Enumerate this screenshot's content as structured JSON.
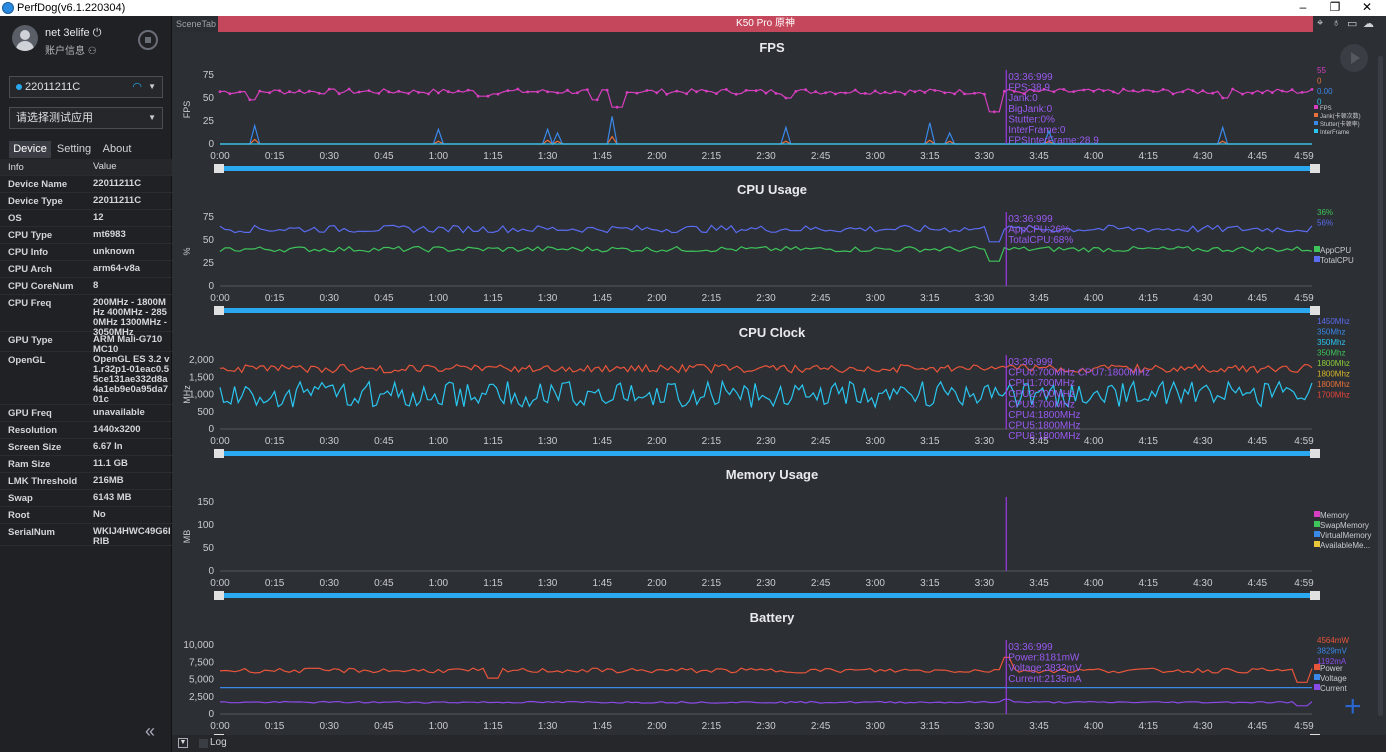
{
  "window": {
    "title": "PerfDog(v6.1.220304)",
    "min_icon": "minimize-icon",
    "restore_icon": "restore-icon",
    "close_icon": "close-icon"
  },
  "user": {
    "name": "net 3elife",
    "info": "账户信息"
  },
  "device_select": {
    "value": "22011211C"
  },
  "app_select": {
    "value": "请选择测试应用"
  },
  "tabs": {
    "device": "Device",
    "setting": "Setting",
    "about": "About"
  },
  "info_header": {
    "key": "Info",
    "value": "Value"
  },
  "info": [
    {
      "k": "Device Name",
      "v": "22011211C"
    },
    {
      "k": "Device Type",
      "v": "22011211C"
    },
    {
      "k": "OS",
      "v": "12"
    },
    {
      "k": "CPU Type",
      "v": "mt6983"
    },
    {
      "k": "CPU Info",
      "v": "unknown"
    },
    {
      "k": "CPU Arch",
      "v": "arm64-v8a"
    },
    {
      "k": "CPU CoreNum",
      "v": "8"
    },
    {
      "k": "CPU Freq",
      "v": "200MHz - 1800MHz 400MHz - 2850MHz 1300MHz - 3050MHz"
    },
    {
      "k": "GPU Type",
      "v": "ARM Mali-G710 MC10"
    },
    {
      "k": "OpenGL",
      "v": "OpenGL ES 3.2 v1.r32p1-01eac0.55ce131ae332d8a4a1eb9e0a95da701c"
    },
    {
      "k": "GPU Freq",
      "v": "unavailable"
    },
    {
      "k": "Resolution",
      "v": "1440x3200"
    },
    {
      "k": "Screen Size",
      "v": "6.67 In"
    },
    {
      "k": "Ram Size",
      "v": "11.1 GB"
    },
    {
      "k": "LMK Threshold",
      "v": "216MB"
    },
    {
      "k": "Swap",
      "v": "6143 MB"
    },
    {
      "k": "Root",
      "v": "No"
    },
    {
      "k": "SerialNum",
      "v": "WKIJ4HWC49G6IRIB"
    }
  ],
  "scene_tab": "SceneTab",
  "session_title": "K50 Pro 原神",
  "bottom": {
    "log": "Log"
  },
  "x_ticks": [
    "0:00",
    "0:15",
    "0:30",
    "0:45",
    "1:00",
    "1:15",
    "1:30",
    "1:45",
    "2:00",
    "2:15",
    "2:30",
    "2:45",
    "3:00",
    "3:15",
    "3:30",
    "3:45",
    "4:00",
    "4:15",
    "4:30",
    "4:45",
    "4:59"
  ],
  "cursor_x": 3.6,
  "chart_data": [
    {
      "type": "line",
      "title": "FPS",
      "ylabel": "FPS",
      "y_ticks": [
        0,
        25,
        50,
        75
      ],
      "ylim": [
        0,
        75
      ],
      "x_range_min": [
        0,
        5
      ],
      "series": [
        {
          "name": "FPS",
          "color": "#d63fbf",
          "base": 57,
          "noise": 3,
          "dips": [
            [
              0.15,
              48
            ],
            [
              1.2,
              52
            ],
            [
              1.72,
              48
            ],
            [
              1.82,
              40
            ],
            [
              2.6,
              50
            ],
            [
              3.55,
              35
            ],
            [
              4.6,
              50
            ]
          ]
        },
        {
          "name": "Jank(卡顿次数)",
          "color": "#e8703a",
          "base": 0,
          "noise": 0,
          "spikes": [
            [
              0.15,
              5
            ],
            [
              1.0,
              3
            ],
            [
              1.5,
              4
            ],
            [
              1.55,
              3
            ],
            [
              1.8,
              8
            ],
            [
              2.6,
              3
            ],
            [
              3.25,
              4
            ],
            [
              3.35,
              3
            ],
            [
              3.8,
              3
            ],
            [
              4.6,
              3
            ]
          ]
        },
        {
          "name": "Stutter(卡顿率)",
          "color": "#3a88e8",
          "base": 0,
          "noise": 0,
          "spikes": [
            [
              0.15,
              20
            ],
            [
              1.0,
              16
            ],
            [
              1.5,
              16
            ],
            [
              1.55,
              12
            ],
            [
              1.8,
              30
            ],
            [
              2.6,
              18
            ],
            [
              3.25,
              23
            ],
            [
              3.35,
              12
            ],
            [
              3.8,
              14
            ],
            [
              4.6,
              18
            ]
          ]
        },
        {
          "name": "InterFrame",
          "color": "#2ac6f0",
          "base": 0,
          "noise": 0
        }
      ],
      "legend_values": [
        {
          "text": "55",
          "color": "#d63fbf"
        },
        {
          "text": "0",
          "color": "#e8703a"
        },
        {
          "text": "0.00",
          "color": "#3a88e8"
        },
        {
          "text": "0",
          "color": "#2ac6f0"
        }
      ],
      "tooltip": [
        "03:36:999",
        "FPS:38.9",
        "Jank:0",
        "BigJank:0",
        "Stutter:0%",
        "InterFrame:0",
        "FPSInterFrame:28.9"
      ]
    },
    {
      "type": "line",
      "title": "CPU Usage",
      "ylabel": "%",
      "y_ticks": [
        0,
        25,
        50,
        75
      ],
      "ylim": [
        0,
        75
      ],
      "series": [
        {
          "name": "AppCPU",
          "color": "#3ec45a",
          "base": 40,
          "noise": 3,
          "dips": [
            [
              3.55,
              27
            ]
          ]
        },
        {
          "name": "TotalCPU",
          "color": "#5a6cf0",
          "base": 62,
          "noise": 4,
          "dips": [
            [
              3.55,
              48
            ]
          ]
        }
      ],
      "legend_values": [
        {
          "text": "36%",
          "color": "#3ec45a"
        },
        {
          "text": "56%",
          "color": "#5a6cf0"
        }
      ],
      "tooltip": [
        "03:36:999",
        "AppCPU:26%",
        "TotalCPU:68%"
      ]
    },
    {
      "type": "line",
      "title": "CPU Clock",
      "ylabel": "MHz",
      "y_ticks": [
        0,
        500,
        1000,
        1500,
        2000
      ],
      "ylim": [
        0,
        2000
      ],
      "series": [
        {
          "name": "CPU0",
          "color": "#2ac6f0",
          "base": 1000,
          "noise": 380,
          "wave": true
        },
        {
          "name": "CPU4",
          "color": "#e8553a",
          "base": 1750,
          "noise": 120,
          "wave": true
        }
      ],
      "legend_values": [
        {
          "text": "1450Mhz",
          "color": "#5a6cf0"
        },
        {
          "text": "350Mhz",
          "color": "#3a88e8"
        },
        {
          "text": "350Mhz",
          "color": "#2ac6f0"
        },
        {
          "text": "350Mhz",
          "color": "#3ec45a"
        },
        {
          "text": "1800Mhz",
          "color": "#8ed03a"
        },
        {
          "text": "1800Mhz",
          "color": "#d8b82a"
        },
        {
          "text": "1800Mhz",
          "color": "#e8703a"
        },
        {
          "text": "1700Mhz",
          "color": "#e8453a"
        }
      ],
      "tooltip": [
        "03:36:999",
        "CPU0:700MHz   CPU7:1800MHz",
        "CPU1:700MHz",
        "CPU2:700MHz",
        "CPU3:700MHz",
        "CPU4:1800MHz",
        "CPU5:1800MHz",
        "CPU6:1800MHz"
      ]
    },
    {
      "type": "line",
      "title": "Memory Usage",
      "ylabel": "MB",
      "y_ticks": [
        0,
        50,
        100,
        150
      ],
      "ylim": [
        0,
        150
      ],
      "series": [
        {
          "name": "Memory",
          "color": "#d63fbf"
        },
        {
          "name": "SwapMemory",
          "color": "#3ec45a"
        },
        {
          "name": "VirtualMemory",
          "color": "#3a88e8"
        },
        {
          "name": "AvailableMe...",
          "color": "#e8c83a"
        }
      ],
      "legend_values": [],
      "tooltip": []
    },
    {
      "type": "line",
      "title": "Battery",
      "ylabel": "",
      "y_ticks": [
        0,
        2500,
        5000,
        7500,
        10000
      ],
      "ylim": [
        0,
        10000
      ],
      "series": [
        {
          "name": "Power",
          "color": "#e8553a",
          "base": 6300,
          "noise": 350,
          "dips": [
            [
              1.25,
              5200
            ],
            [
              3.6,
              8200
            ],
            [
              4.95,
              4600
            ]
          ]
        },
        {
          "name": "Voltage",
          "color": "#3a88e8",
          "base": 3830,
          "noise": 0
        },
        {
          "name": "Current",
          "color": "#8a4ae8",
          "base": 1700,
          "noise": 120,
          "dips": [
            [
              3.6,
              2135
            ],
            [
              4.95,
              1190
            ]
          ]
        }
      ],
      "legend_values": [
        {
          "text": "4564mW",
          "color": "#e8553a"
        },
        {
          "text": "3829mV",
          "color": "#3a88e8"
        },
        {
          "text": "1192mA",
          "color": "#8a4ae8"
        }
      ],
      "tooltip": [
        "03:36:999",
        "Power:8181mW",
        "Voltage:3832mV",
        "Current:2135mA"
      ]
    }
  ]
}
